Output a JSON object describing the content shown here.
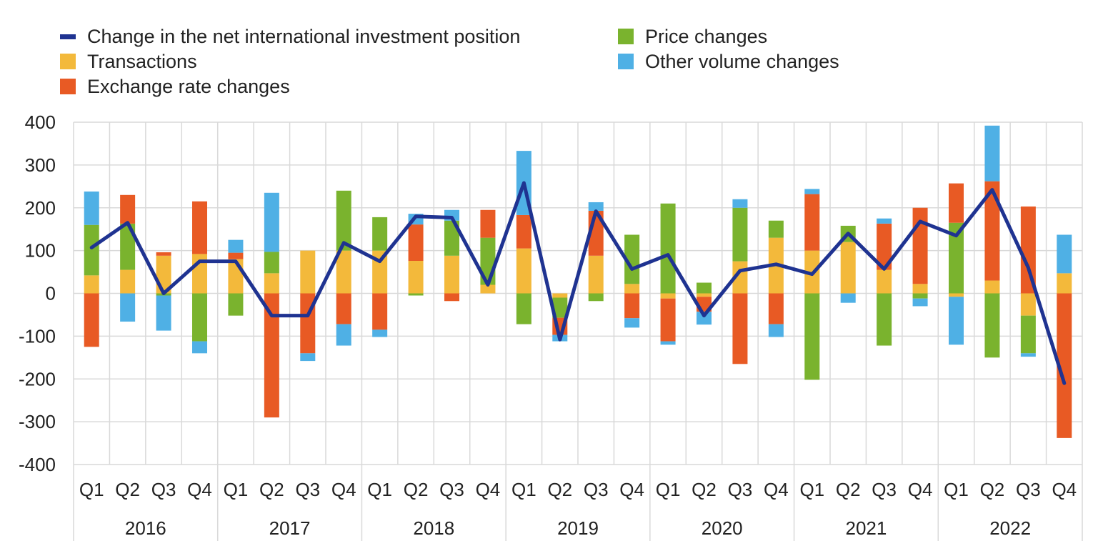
{
  "colors": {
    "line": "#1f3391",
    "transactions": "#f3b93b",
    "price": "#7ab32e",
    "exchange": "#e85a24",
    "other": "#4fb0e5",
    "grid": "#d9d9d9"
  },
  "legend": [
    {
      "label": "Change in the net international investment position",
      "key": "line",
      "kind": "line"
    },
    {
      "label": "Transactions",
      "key": "transactions",
      "kind": "bar"
    },
    {
      "label": "Exchange rate changes",
      "key": "exchange",
      "kind": "bar"
    },
    {
      "label": "Price changes",
      "key": "price",
      "kind": "bar"
    },
    {
      "label": "Other volume changes",
      "key": "other",
      "kind": "bar"
    }
  ],
  "chart_data": {
    "type": "bar",
    "stacked": true,
    "ylim": [
      -400,
      400
    ],
    "yticks": [
      400,
      300,
      200,
      100,
      0,
      -100,
      -200,
      -300,
      -400
    ],
    "quarters": [
      "Q1",
      "Q2",
      "Q3",
      "Q4",
      "Q1",
      "Q2",
      "Q3",
      "Q4",
      "Q1",
      "Q2",
      "Q3",
      "Q4",
      "Q1",
      "Q2",
      "Q3",
      "Q4",
      "Q1",
      "Q2",
      "Q3",
      "Q4",
      "Q1",
      "Q2",
      "Q3",
      "Q4",
      "Q1",
      "Q2",
      "Q3",
      "Q4"
    ],
    "years": [
      "2016",
      "2017",
      "2018",
      "2019",
      "2020",
      "2021",
      "2022"
    ],
    "series": [
      {
        "name": "Transactions",
        "key": "transactions",
        "values": [
          42,
          55,
          88,
          92,
          80,
          47,
          100,
          100,
          100,
          76,
          88,
          20,
          105,
          -10,
          88,
          22,
          -12,
          -8,
          75,
          130,
          100,
          120,
          55,
          22,
          -8,
          30,
          -52,
          47
        ]
      },
      {
        "name": "Price changes",
        "key": "price",
        "values": [
          118,
          108,
          -5,
          -112,
          -52,
          50,
          0,
          140,
          78,
          -5,
          82,
          110,
          -72,
          -47,
          -18,
          115,
          210,
          25,
          125,
          40,
          -202,
          38,
          -122,
          -12,
          165,
          -150,
          -88,
          0
        ]
      },
      {
        "name": "Exchange rate changes",
        "key": "exchange",
        "values": [
          -125,
          67,
          8,
          123,
          15,
          -290,
          -140,
          -72,
          -85,
          85,
          -18,
          65,
          78,
          -40,
          105,
          -58,
          -100,
          -35,
          -165,
          -72,
          132,
          0,
          108,
          178,
          92,
          232,
          203,
          -338
        ]
      },
      {
        "name": "Other volume changes",
        "key": "other",
        "values": [
          78,
          -66,
          -82,
          -28,
          30,
          138,
          -18,
          -50,
          -17,
          25,
          25,
          0,
          150,
          -15,
          20,
          -22,
          -8,
          -30,
          20,
          -30,
          12,
          -22,
          12,
          -18,
          -112,
          130,
          -8,
          90
        ]
      }
    ],
    "line": {
      "name": "Change in the net international investment position",
      "values": [
        107,
        165,
        0,
        75,
        75,
        -52,
        -52,
        118,
        75,
        180,
        177,
        20,
        258,
        -108,
        192,
        57,
        90,
        -52,
        53,
        68,
        45,
        140,
        57,
        168,
        135,
        242,
        60,
        -210
      ]
    }
  }
}
